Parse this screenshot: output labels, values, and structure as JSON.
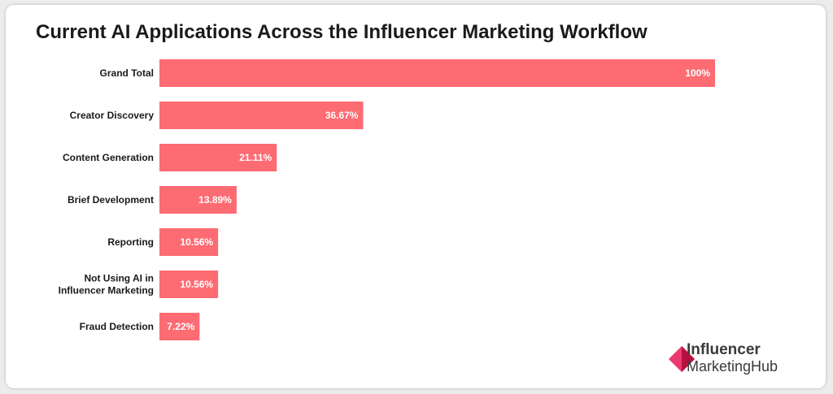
{
  "title": "Current AI Applications Across the Influencer Marketing Workflow",
  "logo": {
    "line1": "Influencer",
    "line2": "MarketingHub"
  },
  "colors": {
    "bar": "#fd6b73",
    "logo_pink": "#ec3a6e",
    "logo_dark": "#b5123f"
  },
  "chart_data": {
    "type": "bar",
    "orientation": "horizontal",
    "categories": [
      "Grand Total",
      "Creator Discovery",
      "Content Generation",
      "Brief Development",
      "Reporting",
      "Not Using AI in Influencer Marketing",
      "Fraud Detection"
    ],
    "category_lines": [
      [
        "Grand Total"
      ],
      [
        "Creator Discovery"
      ],
      [
        "Content Generation"
      ],
      [
        "Brief Development"
      ],
      [
        "Reporting"
      ],
      [
        "Not Using AI in",
        "Influencer Marketing"
      ],
      [
        "Fraud Detection"
      ]
    ],
    "values": [
      100,
      36.67,
      21.11,
      13.89,
      10.56,
      10.56,
      7.22
    ],
    "value_labels": [
      "100%",
      "36.67%",
      "21.11%",
      "13.89%",
      "10.56%",
      "10.56%",
      "7.22%"
    ],
    "xlim": [
      0,
      100
    ],
    "grid": false,
    "legend": "none"
  }
}
